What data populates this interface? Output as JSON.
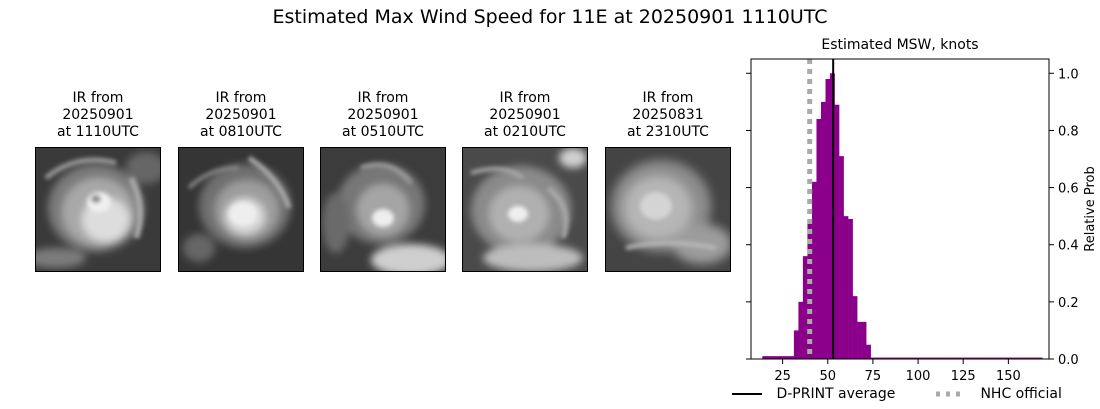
{
  "figure": {
    "title": "Estimated Max Wind Speed for 11E at 20250901 1110UTC"
  },
  "ir_panels": [
    {
      "line1": "IR from",
      "line2": "20250901",
      "line3": "at 1110UTC",
      "icon": "satellite-ir-image"
    },
    {
      "line1": "IR from",
      "line2": "20250901",
      "line3": "at 0810UTC",
      "icon": "satellite-ir-image"
    },
    {
      "line1": "IR from",
      "line2": "20250901",
      "line3": "at 0510UTC",
      "icon": "satellite-ir-image"
    },
    {
      "line1": "IR from",
      "line2": "20250901",
      "line3": "at 0210UTC",
      "icon": "satellite-ir-image"
    },
    {
      "line1": "IR from",
      "line2": "20250831",
      "line3": "at 2310UTC",
      "icon": "satellite-ir-image"
    }
  ],
  "chart_data": {
    "type": "bar",
    "title": "Estimated MSW, knots",
    "xlabel": "",
    "ylabel": "Relative Prob",
    "xlim": [
      7.5,
      172.5
    ],
    "ylim": [
      0,
      1.05
    ],
    "xticks": [
      25,
      50,
      75,
      100,
      125,
      150
    ],
    "yticks": [
      0.0,
      0.2,
      0.4,
      0.6,
      0.8,
      1.0
    ],
    "ytick_labels": [
      "0.0",
      "0.2",
      "0.4",
      "0.6",
      "0.8",
      "1.0"
    ],
    "y_axis_side": "right",
    "bin_width": 2.5,
    "bins": [
      {
        "x": 15.0,
        "y": 0.01
      },
      {
        "x": 17.5,
        "y": 0.01
      },
      {
        "x": 20.0,
        "y": 0.01
      },
      {
        "x": 22.5,
        "y": 0.01
      },
      {
        "x": 25.0,
        "y": 0.01
      },
      {
        "x": 27.5,
        "y": 0.01
      },
      {
        "x": 30.0,
        "y": 0.01
      },
      {
        "x": 32.5,
        "y": 0.1
      },
      {
        "x": 35.0,
        "y": 0.2
      },
      {
        "x": 37.5,
        "y": 0.36
      },
      {
        "x": 40.0,
        "y": 0.48
      },
      {
        "x": 42.5,
        "y": 0.62
      },
      {
        "x": 45.0,
        "y": 0.84
      },
      {
        "x": 47.5,
        "y": 0.9
      },
      {
        "x": 50.0,
        "y": 0.98
      },
      {
        "x": 52.5,
        "y": 1.0
      },
      {
        "x": 55.0,
        "y": 0.89
      },
      {
        "x": 57.5,
        "y": 0.71
      },
      {
        "x": 60.0,
        "y": 0.5
      },
      {
        "x": 62.5,
        "y": 0.49
      },
      {
        "x": 65.0,
        "y": 0.22
      },
      {
        "x": 67.5,
        "y": 0.13
      },
      {
        "x": 70.0,
        "y": 0.13
      },
      {
        "x": 72.5,
        "y": 0.05
      },
      {
        "x": 75.0,
        "y": 0.005
      },
      {
        "x": 77.5,
        "y": 0.005
      },
      {
        "x": 80.0,
        "y": 0.005
      },
      {
        "x": 82.5,
        "y": 0.005
      },
      {
        "x": 85.0,
        "y": 0.005
      },
      {
        "x": 87.5,
        "y": 0.005
      },
      {
        "x": 90.0,
        "y": 0.005
      },
      {
        "x": 92.5,
        "y": 0.005
      },
      {
        "x": 95.0,
        "y": 0.005
      },
      {
        "x": 97.5,
        "y": 0.005
      },
      {
        "x": 100.0,
        "y": 0.005
      },
      {
        "x": 102.5,
        "y": 0.005
      },
      {
        "x": 105.0,
        "y": 0.005
      },
      {
        "x": 107.5,
        "y": 0.005
      },
      {
        "x": 110.0,
        "y": 0.005
      },
      {
        "x": 112.5,
        "y": 0.005
      },
      {
        "x": 115.0,
        "y": 0.005
      },
      {
        "x": 117.5,
        "y": 0.005
      },
      {
        "x": 120.0,
        "y": 0.005
      },
      {
        "x": 122.5,
        "y": 0.005
      },
      {
        "x": 125.0,
        "y": 0.005
      },
      {
        "x": 127.5,
        "y": 0.005
      },
      {
        "x": 130.0,
        "y": 0.005
      },
      {
        "x": 132.5,
        "y": 0.005
      },
      {
        "x": 135.0,
        "y": 0.005
      },
      {
        "x": 137.5,
        "y": 0.005
      },
      {
        "x": 140.0,
        "y": 0.005
      },
      {
        "x": 142.5,
        "y": 0.005
      },
      {
        "x": 145.0,
        "y": 0.005
      },
      {
        "x": 147.5,
        "y": 0.005
      },
      {
        "x": 150.0,
        "y": 0.005
      },
      {
        "x": 152.5,
        "y": 0.005
      },
      {
        "x": 155.0,
        "y": 0.005
      },
      {
        "x": 157.5,
        "y": 0.005
      },
      {
        "x": 160.0,
        "y": 0.005
      },
      {
        "x": 162.5,
        "y": 0.005
      },
      {
        "x": 165.0,
        "y": 0.005
      },
      {
        "x": 167.5,
        "y": 0.005
      }
    ],
    "bar_color": "#8b008b",
    "dprint_average": 53,
    "nhc_official": 40,
    "legend": [
      {
        "label": "D-PRINT average",
        "color": "#000000",
        "style": "solid"
      },
      {
        "label": "NHC official",
        "color": "#aaaaaa",
        "style": "dotted"
      }
    ],
    "legend_placement": "bottom",
    "grid": false
  }
}
